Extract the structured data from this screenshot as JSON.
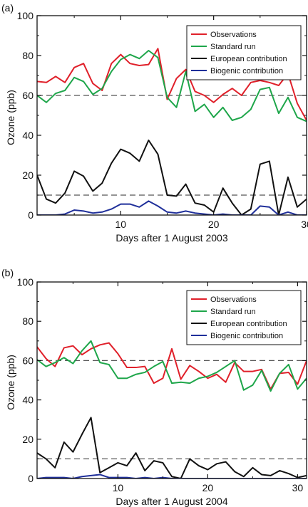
{
  "chart_data": [
    {
      "type": "line",
      "panel_label": "(a)",
      "xlabel": "Days after 1 August 2003",
      "ylabel": "Ozone (ppb)",
      "xlim": [
        1,
        30
      ],
      "ylim": [
        0,
        100
      ],
      "xticks": [
        10,
        20,
        30
      ],
      "yticks": [
        0,
        20,
        40,
        60,
        80,
        100
      ],
      "reference_lines": [
        60,
        10
      ],
      "grid": false,
      "legend_position": "top-right",
      "x": [
        1,
        2,
        3,
        4,
        5,
        6,
        7,
        8,
        9,
        10,
        11,
        12,
        13,
        14,
        15,
        16,
        17,
        18,
        19,
        20,
        21,
        22,
        23,
        24,
        25,
        26,
        27,
        28,
        29,
        30
      ],
      "series": [
        {
          "name": "Observations",
          "color": "#e0202a",
          "values": [
            67,
            66.5,
            69.5,
            66.5,
            74,
            76,
            66,
            62.5,
            76,
            80.5,
            76,
            75,
            75.5,
            83.5,
            58,
            68.5,
            73,
            62,
            60,
            56.5,
            60.5,
            63.5,
            60,
            66.5,
            67.5,
            66.5,
            65,
            71,
            56,
            47.5
          ]
        },
        {
          "name": "Standard run",
          "color": "#1ea64a",
          "values": [
            60,
            56.5,
            61,
            62.5,
            69,
            67,
            60.5,
            63.5,
            72,
            78,
            80.5,
            78.5,
            82.5,
            79,
            59,
            54,
            72,
            52,
            55.5,
            49,
            54,
            47.5,
            49,
            53,
            63,
            64,
            51,
            59,
            49,
            47
          ]
        },
        {
          "name": "European contribution",
          "color": "#111111",
          "values": [
            20,
            8,
            6,
            11,
            22,
            19.5,
            12,
            16,
            26,
            33,
            31,
            27,
            37.5,
            30.5,
            10,
            9.5,
            15.5,
            6,
            5,
            1.5,
            13.5,
            6,
            0,
            3,
            25.5,
            27,
            0,
            19,
            4,
            8
          ]
        },
        {
          "name": "Biogenic contribution",
          "color": "#1f2f9a",
          "values": [
            0,
            0,
            0,
            0.5,
            2.5,
            2,
            1,
            1.5,
            3,
            5.5,
            5.5,
            4,
            7,
            4.5,
            1.5,
            1,
            2,
            1,
            0.5,
            0,
            0.5,
            0,
            0,
            0,
            4.5,
            4,
            0,
            1.5,
            0,
            0
          ]
        }
      ]
    },
    {
      "type": "line",
      "panel_label": "(b)",
      "xlabel": "Days after 1 August 2004",
      "ylabel": "Ozone (ppb)",
      "xlim": [
        1,
        31
      ],
      "ylim": [
        0,
        100
      ],
      "xticks": [
        10,
        20,
        30
      ],
      "yticks": [
        0,
        20,
        40,
        60,
        80,
        100
      ],
      "reference_lines": [
        60,
        10
      ],
      "grid": false,
      "legend_position": "top-right",
      "x": [
        1,
        2,
        3,
        4,
        5,
        6,
        7,
        8,
        9,
        10,
        11,
        12,
        13,
        14,
        15,
        16,
        17,
        18,
        19,
        20,
        21,
        22,
        23,
        24,
        25,
        26,
        27,
        28,
        29,
        30,
        31
      ],
      "series": [
        {
          "name": "Observations",
          "color": "#e0202a",
          "values": [
            67,
            61,
            57,
            66.5,
            67.5,
            63,
            66,
            68,
            69,
            63.5,
            56.5,
            56.5,
            57,
            48.5,
            51,
            66,
            50.5,
            57.5,
            54.5,
            51,
            53,
            49,
            59,
            54.5,
            54.5,
            55.5,
            45.5,
            53.5,
            54,
            48,
            60
          ]
        },
        {
          "name": "Standard run",
          "color": "#1ea64a",
          "values": [
            60.5,
            57,
            59,
            61.5,
            58.5,
            65,
            70,
            59,
            58,
            51,
            51,
            53,
            54,
            57,
            59.5,
            48.5,
            49,
            48.5,
            51,
            52,
            54,
            57,
            60,
            45,
            47.5,
            55,
            44.5,
            53.5,
            58,
            45.5,
            51
          ]
        },
        {
          "name": "European contribution",
          "color": "#111111",
          "values": [
            13,
            10,
            5.5,
            18.5,
            13.5,
            22.5,
            31,
            3,
            5.5,
            8,
            6.5,
            13,
            4,
            9,
            8,
            1,
            0,
            10,
            6.5,
            4.5,
            7.5,
            8.5,
            3.5,
            1,
            5.5,
            2,
            1.5,
            4,
            2.5,
            0.5,
            1.5
          ]
        },
        {
          "name": "Biogenic contribution",
          "color": "#1f2f9a",
          "values": [
            0,
            0.5,
            0.5,
            0.5,
            0,
            1,
            1.5,
            2,
            0.5,
            0.5,
            0.5,
            0,
            0.5,
            0,
            0.5,
            0,
            0,
            0,
            0,
            0,
            0,
            0,
            0,
            0,
            0,
            0,
            0,
            0,
            0,
            0,
            0
          ]
        }
      ]
    }
  ]
}
